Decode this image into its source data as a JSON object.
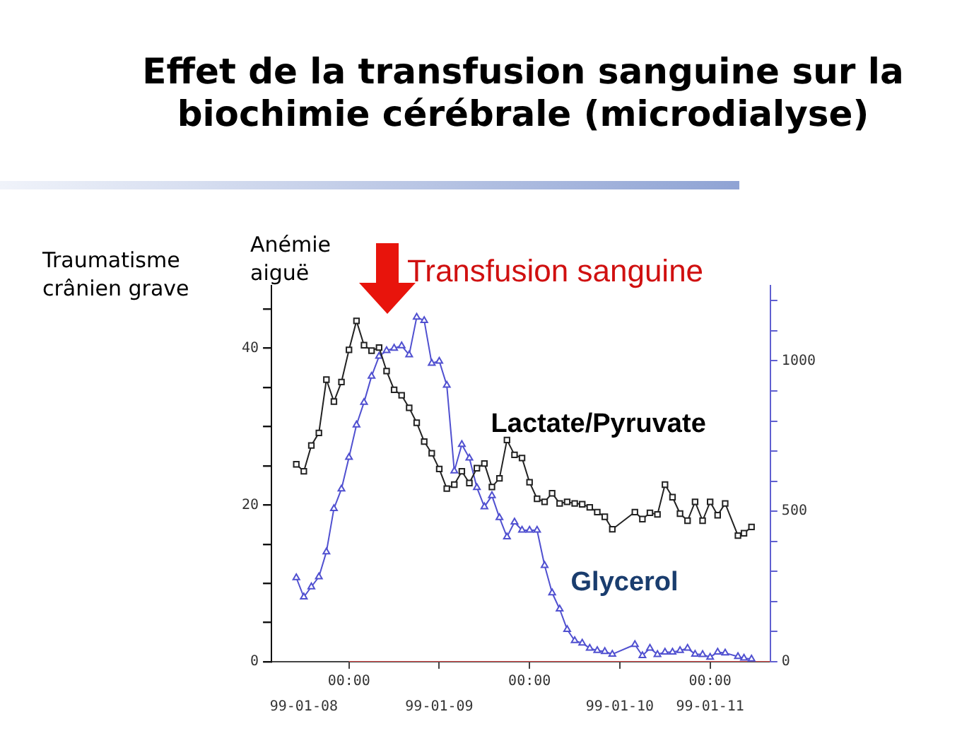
{
  "chart_data": {
    "type": "line",
    "title": "Effet de la transfusion sanguine sur la biochimie cérébrale (microdialyse)",
    "annotations": [
      "Traumatisme crânien grave",
      "Anémie aiguë",
      "Transfusion sanguine"
    ],
    "x": [
      "--01-08T17:00",
      "--01-08T18:00",
      "--01-08T19:00",
      "--01-08T20:00",
      "--01-08T21:00",
      "--01-08T22:00",
      "--01-08T23:00",
      "--01-09T00:00",
      "--01-09T01:00",
      "--01-09T02:00",
      "--01-09T03:00",
      "--01-09T04:00",
      "--01-09T05:00",
      "--01-09T06:00",
      "--01-09T07:00",
      "--01-09T08:00",
      "--01-09T09:00",
      "--01-09T10:00",
      "--01-09T11:00",
      "--01-09T12:00",
      "--01-09T13:00",
      "--01-09T14:00",
      "--01-09T15:00",
      "--01-09T16:00",
      "--01-09T17:00",
      "--01-09T18:00",
      "--01-09T19:00",
      "--01-09T20:00",
      "--01-09T21:00",
      "--01-09T22:00",
      "--01-09T23:00",
      "--01-10T00:00",
      "--01-10T01:00",
      "--01-10T02:00",
      "--01-10T03:00",
      "--01-10T04:00",
      "--01-10T05:00",
      "--01-10T06:00",
      "--01-10T07:00",
      "--01-10T08:00",
      "--01-10T09:00",
      "--01-10T10:00",
      "--01-10T11:00",
      "--01-10T14:00",
      "--01-10T15:00",
      "--01-10T16:00",
      "--01-10T17:00",
      "--01-10T18:00",
      "--01-10T19:00",
      "--01-10T20:00",
      "--01-10T21:00",
      "--01-10T22:00",
      "--01-10T23:00",
      "--01-11T00:00",
      "--01-11T01:00",
      "--01-11T02:00",
      "--01-11T03:42",
      "--01-11T04:30",
      "--01-11T05:30"
    ],
    "xlim": [
      "--01-08T13:42",
      "--01-11T08:00"
    ],
    "xticks": [
      {
        "value": "--01-09T00:00",
        "label": "00:00"
      },
      {
        "value": "--01-09T12:00",
        "label": null
      },
      {
        "value": "--01-10T00:00",
        "label": "00:00"
      },
      {
        "value": "--01-10T12:00",
        "label": null
      },
      {
        "value": "--01-11T00:00",
        "label": "00:00"
      }
    ],
    "x2lim": [
      "--01-08T13:42",
      "--01-11T08:00"
    ],
    "x2ticks": [
      {
        "value": "--01-08T18:00",
        "label": "99-01-08"
      },
      {
        "value": "--01-09T12:00",
        "label": "99-01-09"
      },
      {
        "value": "--01-10T12:00",
        "label": "99-01-10"
      },
      {
        "value": "--01-11T00:00",
        "label": "99-01-11"
      }
    ],
    "ylim": [
      0,
      48
    ],
    "yticks": [
      0,
      {
        "value": 5,
        "label": null
      },
      {
        "value": 10,
        "label": null
      },
      {
        "value": 15,
        "label": null
      },
      20,
      {
        "value": 25,
        "label": null
      },
      {
        "value": 30,
        "label": null
      },
      {
        "value": 35,
        "label": null
      },
      40,
      {
        "value": 45,
        "label": null
      }
    ],
    "y2lim": [
      0,
      1250
    ],
    "y2ticks": [
      0,
      {
        "value": 100,
        "label": null
      },
      {
        "value": 200,
        "label": null
      },
      {
        "value": 300,
        "label": null
      },
      {
        "value": 400,
        "label": null
      },
      500,
      {
        "value": 600,
        "label": null
      },
      {
        "value": 700,
        "label": null
      },
      {
        "value": 800,
        "label": null
      },
      {
        "value": 900,
        "label": null
      },
      1000,
      {
        "value": 1100,
        "label": null
      },
      {
        "value": 1200,
        "label": null
      }
    ],
    "grid": false,
    "legend": false,
    "line_style": "solid",
    "series": [
      {
        "name": "Lactate/Pyruvate",
        "color": "#222222",
        "marker": "square",
        "values": [
          25.2,
          24.3,
          27.6,
          29.2,
          36.0,
          33.2,
          35.7,
          39.8,
          43.5,
          40.4,
          39.7,
          40.1,
          37.1,
          34.7,
          34.0,
          32.4,
          30.5,
          28.1,
          26.6,
          24.6,
          22.1,
          22.6,
          24.3,
          22.8,
          24.7,
          25.3,
          22.3,
          23.4,
          28.3,
          26.4,
          26.0,
          22.9,
          20.8,
          20.4,
          21.5,
          20.2,
          20.4,
          20.2,
          20.1,
          19.7,
          19.1,
          18.5,
          16.9,
          19.1,
          18.2,
          19.0,
          18.8,
          22.6,
          21.0,
          18.9,
          18.0,
          20.4,
          18.0,
          20.4,
          18.7,
          20.2,
          16.1,
          16.4,
          17.2
        ]
      },
      {
        "name": "Glycerol",
        "color": "#5050d0",
        "marker": "triangle",
        "axis": "y2",
        "values": [
          279,
          215,
          249,
          282,
          365,
          509,
          574,
          679,
          787,
          862,
          949,
          1015,
          1034,
          1042,
          1050,
          1020,
          1145,
          1134,
          992,
          999,
          919,
          634,
          722,
          677,
          579,
          515,
          552,
          479,
          415,
          464,
          437,
          437,
          437,
          320,
          229,
          175,
          107,
          70,
          62,
          45,
          37,
          34,
          25,
          57,
          20,
          45,
          24,
          32,
          32,
          37,
          45,
          25,
          24,
          15,
          32,
          29,
          17,
          12,
          9
        ]
      },
      {
        "color": "#e05050",
        "marker": "none",
        "x": [
          "--01-09T00:00",
          "--01-11T08:00"
        ],
        "values": [
          0,
          0
        ]
      }
    ]
  }
}
